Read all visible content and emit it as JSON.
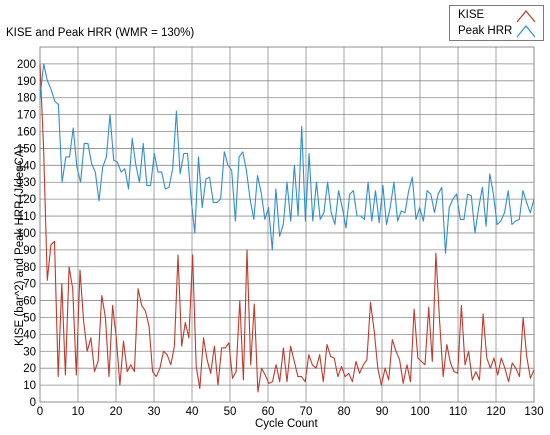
{
  "chart_data": {
    "type": "line",
    "title": "KISE and Peak HRR (WMR = 130%)",
    "xlabel": "Cycle Count",
    "ylabel": "KISE (bar^2) and Peak HRR (J/degCA)",
    "xlim": [
      0,
      130
    ],
    "ylim": [
      0,
      210
    ],
    "xticks": [
      0,
      10,
      20,
      30,
      40,
      50,
      60,
      70,
      80,
      90,
      100,
      110,
      120,
      130
    ],
    "yticks": [
      0,
      10,
      20,
      30,
      40,
      50,
      60,
      70,
      80,
      90,
      100,
      110,
      120,
      130,
      140,
      150,
      160,
      170,
      180,
      190,
      200
    ],
    "grid": true,
    "legend_position": "top-right",
    "series": [
      {
        "name": "KISE",
        "color": "#c0392b",
        "values": [
          200,
          150,
          72,
          93,
          95,
          15,
          70,
          16,
          80,
          67,
          16,
          78,
          48,
          30,
          38,
          18,
          24,
          63,
          50,
          15,
          57,
          38,
          10,
          36,
          18,
          22,
          18,
          67,
          57,
          54,
          45,
          18,
          15,
          20,
          30,
          28,
          22,
          33,
          87,
          33,
          47,
          38,
          87,
          21,
          8,
          38,
          25,
          17,
          33,
          10,
          32,
          32,
          35,
          14,
          18,
          60,
          13,
          90,
          22,
          58,
          6,
          20,
          16,
          11,
          12,
          22,
          12,
          32,
          12,
          33,
          24,
          15,
          15,
          12,
          28,
          22,
          20,
          28,
          12,
          34,
          27,
          26,
          15,
          21,
          15,
          17,
          12,
          24,
          17,
          22,
          25,
          59,
          42,
          20,
          10,
          20,
          13,
          37,
          30,
          25,
          11,
          22,
          12,
          55,
          26,
          24,
          22,
          56,
          24,
          88,
          48,
          15,
          34,
          23,
          18,
          17,
          57,
          22,
          30,
          13,
          18,
          13,
          52,
          26,
          20,
          26,
          16,
          26,
          20,
          12,
          23,
          20,
          15,
          50,
          27,
          14,
          19
        ]
      },
      {
        "name": "Peak HRR",
        "color": "#2e8fcf",
        "values": [
          180,
          200,
          190,
          185,
          178,
          176,
          130,
          145,
          145,
          162,
          139,
          130,
          153,
          153,
          141,
          136,
          119,
          139,
          145,
          170,
          143,
          142,
          136,
          138,
          126,
          156,
          140,
          130,
          153,
          128,
          128,
          147,
          136,
          136,
          126,
          127,
          138,
          172,
          135,
          147,
          147,
          120,
          100,
          145,
          115,
          132,
          133,
          118,
          118,
          120,
          148,
          140,
          137,
          107,
          145,
          148,
          137,
          120,
          108,
          134,
          124,
          108,
          115,
          90,
          126,
          98,
          105,
          130,
          107,
          140,
          110,
          163,
          107,
          147,
          107,
          130,
          108,
          112,
          130,
          112,
          105,
          125,
          115,
          103,
          123,
          125,
          110,
          110,
          108,
          130,
          107,
          125,
          106,
          128,
          105,
          115,
          130,
          107,
          113,
          112,
          125,
          133,
          108,
          115,
          107,
          125,
          123,
          112,
          123,
          127,
          88,
          115,
          120,
          123,
          108,
          108,
          123,
          122,
          100,
          115,
          127,
          104,
          135,
          123,
          105,
          107,
          112,
          125,
          105,
          107,
          108,
          125,
          118,
          112,
          120
        ]
      }
    ]
  }
}
